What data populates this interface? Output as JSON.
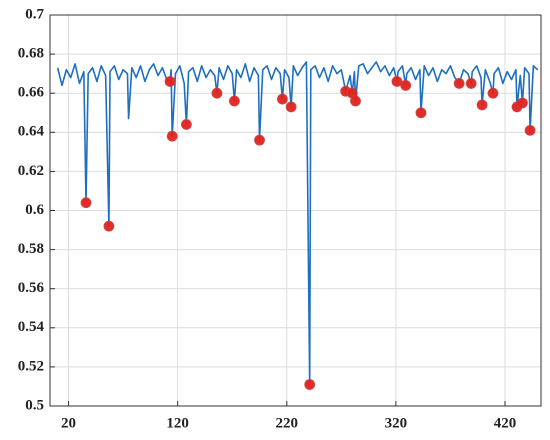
{
  "chart_data": {
    "type": "line",
    "xlim": [
      3,
      453
    ],
    "ylim": [
      0.5,
      0.7
    ],
    "xticks": [
      20,
      120,
      220,
      320,
      420
    ],
    "yticks": [
      0.5,
      0.52,
      0.54,
      0.56,
      0.58,
      0.6,
      0.62,
      0.64,
      0.66,
      0.68,
      0.7
    ],
    "grid": true,
    "series": [
      {
        "type": "line",
        "color": "#1f6fbf",
        "x": [
          10,
          14,
          18,
          22,
          26,
          30,
          34,
          36,
          38,
          42,
          46,
          50,
          54,
          57,
          58,
          62,
          66,
          70,
          74,
          75,
          78,
          82,
          86,
          90,
          94,
          98,
          102,
          106,
          110,
          113,
          114,
          115,
          118,
          122,
          126,
          128,
          130,
          134,
          138,
          142,
          146,
          150,
          154,
          156,
          158,
          162,
          166,
          170,
          172,
          174,
          178,
          182,
          186,
          190,
          194,
          195,
          198,
          202,
          206,
          210,
          214,
          216,
          218,
          222,
          224,
          226,
          230,
          234,
          238,
          241,
          242,
          246,
          250,
          254,
          258,
          262,
          266,
          270,
          274,
          278,
          280,
          282,
          283,
          286,
          290,
          294,
          298,
          302,
          306,
          310,
          314,
          318,
          321,
          322,
          326,
          329,
          330,
          334,
          338,
          342,
          343,
          346,
          350,
          354,
          358,
          362,
          366,
          370,
          374,
          378,
          382,
          386,
          389,
          390,
          394,
          398,
          399,
          402,
          406,
          409,
          410,
          414,
          418,
          422,
          426,
          430,
          431,
          434,
          436,
          438,
          442,
          443,
          446,
          450
        ],
        "values": [
          0.673,
          0.664,
          0.672,
          0.668,
          0.675,
          0.665,
          0.671,
          0.604,
          0.67,
          0.673,
          0.666,
          0.674,
          0.669,
          0.592,
          0.671,
          0.674,
          0.667,
          0.672,
          0.67,
          0.647,
          0.673,
          0.668,
          0.674,
          0.666,
          0.672,
          0.675,
          0.669,
          0.673,
          0.667,
          0.666,
          0.672,
          0.638,
          0.67,
          0.674,
          0.665,
          0.644,
          0.671,
          0.673,
          0.666,
          0.674,
          0.668,
          0.672,
          0.669,
          0.66,
          0.673,
          0.667,
          0.674,
          0.67,
          0.656,
          0.672,
          0.668,
          0.675,
          0.666,
          0.673,
          0.669,
          0.636,
          0.672,
          0.674,
          0.667,
          0.673,
          0.67,
          0.657,
          0.672,
          0.668,
          0.653,
          0.674,
          0.669,
          0.673,
          0.676,
          0.511,
          0.672,
          0.674,
          0.668,
          0.673,
          0.666,
          0.674,
          0.67,
          0.672,
          0.661,
          0.669,
          0.66,
          0.671,
          0.656,
          0.674,
          0.675,
          0.67,
          0.673,
          0.676,
          0.671,
          0.674,
          0.669,
          0.673,
          0.666,
          0.671,
          0.674,
          0.664,
          0.67,
          0.673,
          0.667,
          0.672,
          0.65,
          0.674,
          0.669,
          0.673,
          0.666,
          0.672,
          0.67,
          0.674,
          0.668,
          0.665,
          0.672,
          0.67,
          0.665,
          0.671,
          0.674,
          0.668,
          0.654,
          0.672,
          0.666,
          0.66,
          0.67,
          0.673,
          0.665,
          0.671,
          0.667,
          0.672,
          0.653,
          0.669,
          0.655,
          0.673,
          0.67,
          0.641,
          0.674,
          0.672
        ]
      },
      {
        "type": "scatter",
        "color": "#e0231e",
        "x": [
          36,
          57,
          113,
          115,
          128,
          156,
          172,
          195,
          216,
          224,
          241,
          274,
          280,
          283,
          321,
          329,
          343,
          378,
          389,
          399,
          409,
          431,
          436,
          443
        ],
        "values": [
          0.604,
          0.592,
          0.666,
          0.638,
          0.644,
          0.66,
          0.656,
          0.636,
          0.657,
          0.653,
          0.511,
          0.661,
          0.66,
          0.656,
          0.666,
          0.664,
          0.65,
          0.665,
          0.665,
          0.654,
          0.66,
          0.653,
          0.655,
          0.641
        ]
      }
    ]
  }
}
